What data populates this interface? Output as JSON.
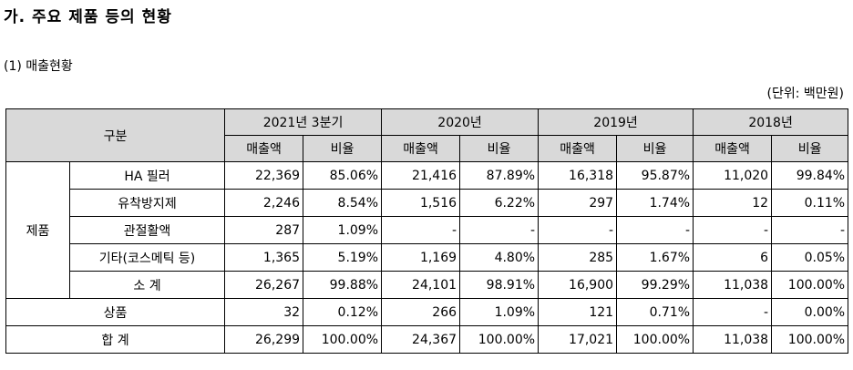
{
  "section_title": "가. 주요 제품 등의 현황",
  "subsection_title": "(1) 매출현황",
  "unit_note": "(단위: 백만원)",
  "table": {
    "header_category": "구분",
    "periods": [
      "2021년 3분기",
      "2020년",
      "2019년",
      "2018년"
    ],
    "sub_headers": {
      "sales": "매출액",
      "ratio": "비율"
    },
    "group_label": "제품",
    "product_rows": [
      {
        "label": "HA 필러",
        "values": [
          "22,369",
          "85.06%",
          "21,416",
          "87.89%",
          "16,318",
          "95.87%",
          "11,020",
          "99.84%"
        ]
      },
      {
        "label": "유착방지제",
        "values": [
          "2,246",
          "8.54%",
          "1,516",
          "6.22%",
          "297",
          "1.74%",
          "12",
          "0.11%"
        ]
      },
      {
        "label": "관절활액",
        "values": [
          "287",
          "1.09%",
          "-",
          "-",
          "-",
          "-",
          "-",
          "-"
        ]
      },
      {
        "label": "기타(코스메틱 등)",
        "values": [
          "1,365",
          "5.19%",
          "1,169",
          "4.80%",
          "285",
          "1.67%",
          "6",
          "0.05%"
        ]
      },
      {
        "label": "소    계",
        "values": [
          "26,267",
          "99.88%",
          "24,101",
          "98.91%",
          "16,900",
          "99.29%",
          "11,038",
          "100.00%"
        ]
      }
    ],
    "merchandise_row": {
      "label": "상품",
      "values": [
        "32",
        "0.12%",
        "266",
        "1.09%",
        "121",
        "0.71%",
        "-",
        "0.00%"
      ]
    },
    "total_row": {
      "label": "합    계",
      "values": [
        "26,299",
        "100.00%",
        "24,367",
        "100.00%",
        "17,021",
        "100.00%",
        "11,038",
        "100.00%"
      ]
    }
  }
}
